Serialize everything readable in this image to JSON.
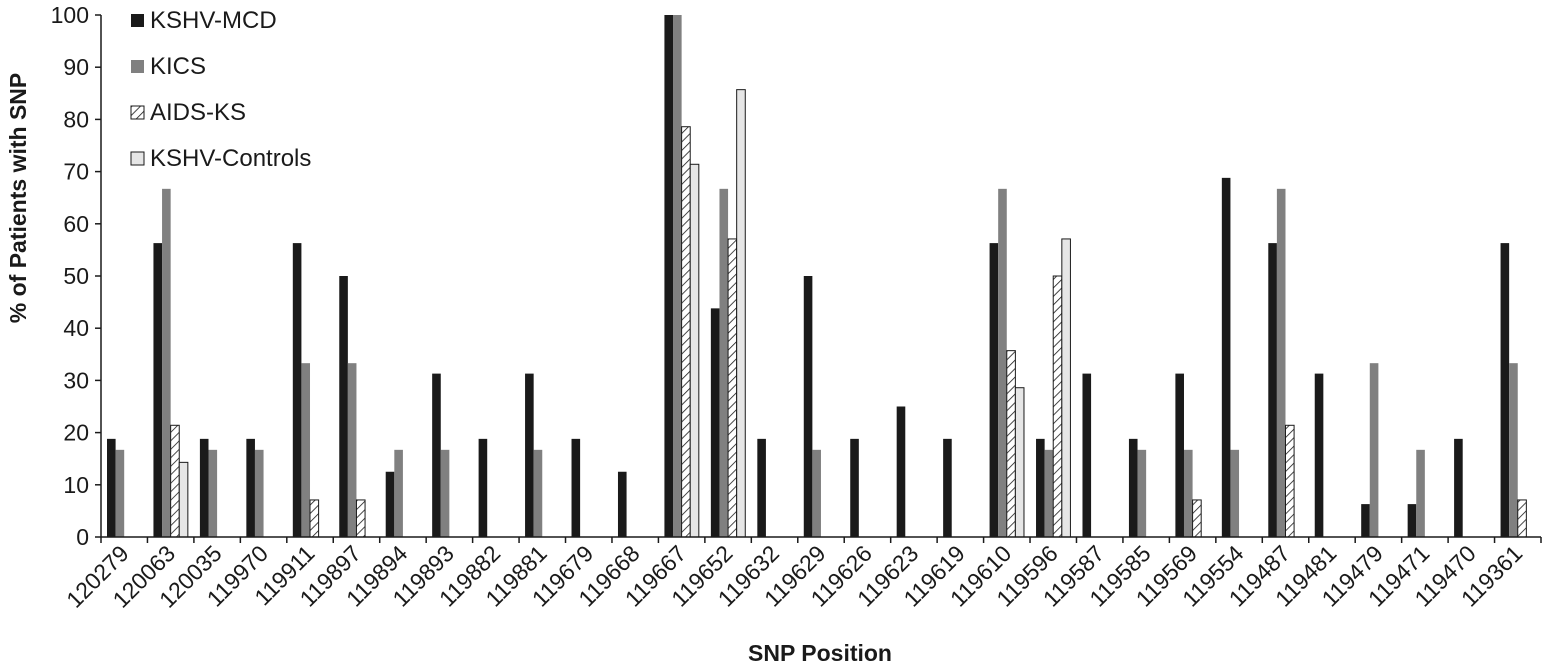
{
  "chart_data": {
    "type": "bar",
    "title": "",
    "xlabel": "SNP Position",
    "ylabel": "% of Patients with SNP",
    "ylim": [
      0,
      100
    ],
    "yticks": [
      0,
      10,
      20,
      30,
      40,
      50,
      60,
      70,
      80,
      90,
      100
    ],
    "grid": false,
    "legend_position": "top-left",
    "categories": [
      "120279",
      "120063",
      "120035",
      "119970",
      "119911",
      "119897",
      "119894",
      "119893",
      "119882",
      "119881",
      "119679",
      "119668",
      "119667",
      "119652",
      "119632",
      "119629",
      "119626",
      "119623",
      "119619",
      "119610",
      "119596",
      "119587",
      "119585",
      "119569",
      "119554",
      "119487",
      "119481",
      "119479",
      "119471",
      "119470",
      "119361"
    ],
    "series": [
      {
        "name": "KSHV-MCD",
        "fill": "#1a1a1a",
        "pattern": "solid",
        "values": [
          18.8,
          56.3,
          18.8,
          18.8,
          56.3,
          50,
          12.5,
          31.3,
          18.8,
          31.3,
          18.8,
          12.5,
          100,
          43.8,
          18.8,
          50,
          18.8,
          25,
          18.8,
          56.3,
          18.8,
          31.3,
          18.8,
          31.3,
          68.8,
          56.3,
          31.3,
          6.3,
          6.3,
          18.8,
          56.3
        ]
      },
      {
        "name": "KICS",
        "fill": "#808080",
        "pattern": "solid",
        "values": [
          16.7,
          66.7,
          16.7,
          16.7,
          33.3,
          33.3,
          16.7,
          16.7,
          0,
          16.7,
          0,
          0,
          100,
          66.7,
          0,
          16.7,
          0,
          0,
          0,
          66.7,
          16.7,
          0,
          16.7,
          16.7,
          16.7,
          66.7,
          0,
          33.3,
          16.7,
          0,
          33.3
        ]
      },
      {
        "name": "AIDS-KS",
        "fill": "#ffffff",
        "pattern": "hatch",
        "values": [
          0,
          21.4,
          0,
          0,
          7.1,
          7.1,
          0,
          0,
          0,
          0,
          0,
          0,
          78.6,
          57.1,
          0,
          0,
          0,
          0,
          0,
          35.7,
          50,
          0,
          0,
          7.1,
          0,
          21.4,
          0,
          0,
          0,
          0,
          7.1
        ]
      },
      {
        "name": "KSHV-Controls",
        "fill": "#e6e6e6",
        "pattern": "solid",
        "values": [
          0,
          14.3,
          0,
          0,
          0,
          0,
          0,
          0,
          0,
          0,
          0,
          0,
          71.4,
          85.7,
          0,
          0,
          0,
          0,
          0,
          28.6,
          57.1,
          0,
          0,
          0,
          0,
          0,
          0,
          0,
          0,
          0,
          0
        ]
      }
    ]
  }
}
